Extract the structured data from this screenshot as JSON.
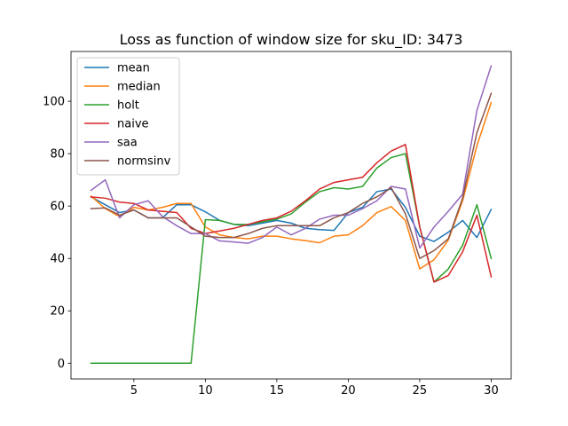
{
  "chart_data": {
    "type": "line",
    "title": "Loss as function of window size for sku_ID: 3473",
    "xlabel": "",
    "ylabel": "",
    "xlim": [
      0.6,
      31.4
    ],
    "ylim": [
      -6,
      119
    ],
    "xticks": [
      5,
      10,
      15,
      20,
      25,
      30
    ],
    "yticks": [
      0,
      20,
      40,
      60,
      80,
      100
    ],
    "grid": false,
    "legend_position": "top-left",
    "x": [
      2,
      3,
      4,
      5,
      6,
      7,
      8,
      9,
      10,
      11,
      12,
      13,
      14,
      15,
      16,
      17,
      18,
      19,
      20,
      21,
      22,
      23,
      24,
      25,
      26,
      27,
      28,
      29,
      30
    ],
    "series": [
      {
        "name": "mean",
        "color": "#1f77b4",
        "values": [
          63.5,
          60.5,
          57.5,
          58.5,
          55.5,
          55.5,
          60.5,
          60.5,
          57.8,
          54.5,
          53.0,
          52.5,
          53.5,
          54.5,
          53.5,
          51.5,
          51.0,
          50.7,
          57.5,
          59.5,
          65.5,
          66.5,
          59.5,
          48.5,
          46.5,
          50.0,
          54.5,
          48.0,
          58.7
        ]
      },
      {
        "name": "median",
        "color": "#ff7f0e",
        "values": [
          63.8,
          59.0,
          56.0,
          59.5,
          58.5,
          59.5,
          61.0,
          61.0,
          52.0,
          49.0,
          48.0,
          47.5,
          48.5,
          48.5,
          47.5,
          46.8,
          46.0,
          48.5,
          49.0,
          52.5,
          57.5,
          59.8,
          54.5,
          36.0,
          39.5,
          47.0,
          62.0,
          83.0,
          99.5
        ]
      },
      {
        "name": "holt",
        "color": "#2ca02c",
        "values": [
          0,
          0,
          0,
          0,
          0,
          0,
          0,
          0,
          54.8,
          54.5,
          53.0,
          53.0,
          54.0,
          55.0,
          57.0,
          61.5,
          65.5,
          67.0,
          66.5,
          67.5,
          74.5,
          78.5,
          80.0,
          52.0,
          31.0,
          36.0,
          45.0,
          60.5,
          40.0
        ]
      },
      {
        "name": "naive",
        "color": "#d62728",
        "values": [
          63.5,
          63.0,
          61.5,
          61.0,
          58.5,
          58.0,
          57.5,
          51.5,
          49.5,
          50.5,
          51.5,
          53.0,
          54.5,
          55.5,
          58.0,
          62.0,
          66.5,
          69.0,
          70.0,
          71.0,
          76.5,
          81.0,
          83.5,
          52.0,
          31.0,
          33.5,
          42.5,
          56.5,
          33.0
        ]
      },
      {
        "name": "saa",
        "color": "#9467bd",
        "values": [
          66.0,
          70.0,
          55.5,
          60.5,
          62.0,
          56.0,
          52.5,
          49.5,
          49.5,
          46.7,
          46.3,
          45.8,
          48.0,
          52.0,
          49.0,
          51.5,
          55.0,
          56.5,
          56.5,
          59.0,
          62.0,
          67.5,
          66.5,
          44.0,
          52.0,
          58.0,
          64.5,
          96.5,
          113.5
        ]
      },
      {
        "name": "normsinv",
        "color": "#8c564b",
        "values": [
          59.0,
          59.3,
          56.5,
          58.5,
          55.5,
          55.5,
          55.5,
          52.0,
          48.5,
          48.0,
          48.0,
          49.5,
          51.5,
          52.5,
          52.5,
          52.5,
          52.5,
          55.5,
          57.5,
          61.0,
          63.5,
          67.0,
          57.0,
          40.0,
          43.0,
          47.5,
          63.0,
          88.0,
          103.0
        ]
      }
    ]
  }
}
